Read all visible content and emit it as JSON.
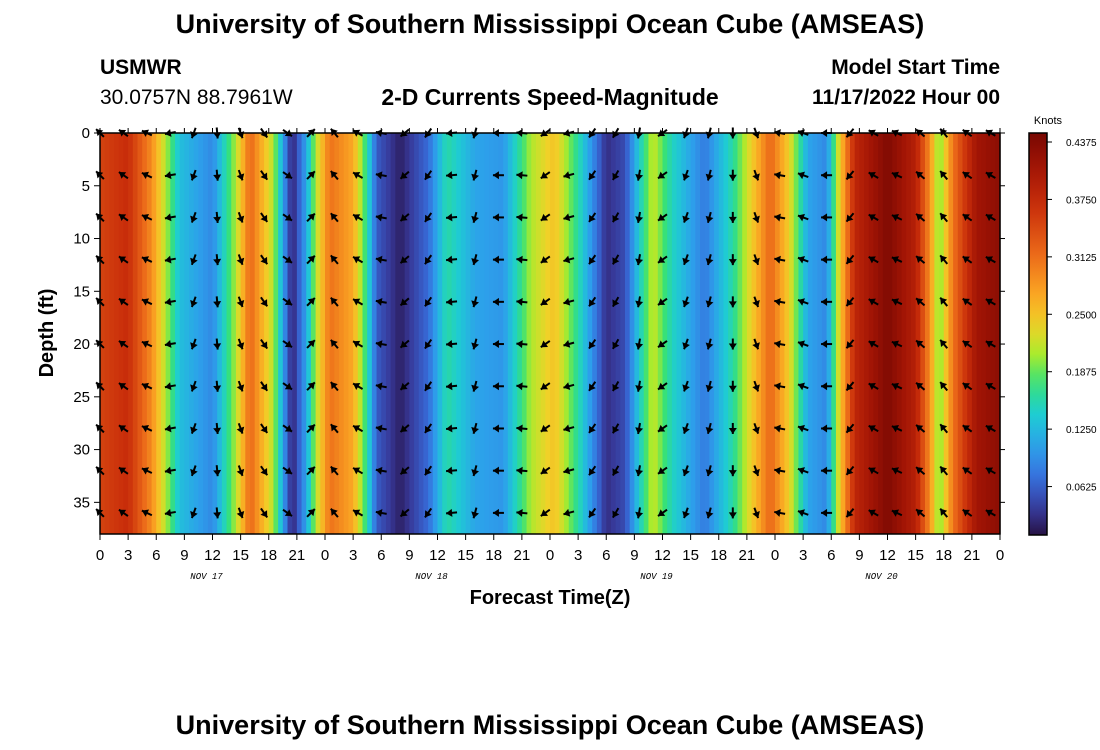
{
  "header": {
    "title": "University of Southern Mississippi Ocean Cube (AMSEAS)",
    "station": "USMWR",
    "coords": "30.0757N  88.7961W",
    "chart_title": "2-D Currents Speed-Magnitude",
    "model_start_label": "Model Start Time",
    "model_start_value": "11/17/2022 Hour 00"
  },
  "footer": {
    "title": "University of Southern Mississippi Ocean Cube (AMSEAS)"
  },
  "colors": {
    "background": "#ffffff",
    "arrow": "#000000"
  },
  "chart_data": {
    "type": "heatmap",
    "title": "2-D Currents Speed-Magnitude",
    "xlabel": "Forecast Time(Z)",
    "ylabel": "Depth (ft)",
    "xlim": [
      0,
      96
    ],
    "ylim": [
      0,
      38
    ],
    "x_tick_labels": [
      "0",
      "3",
      "6",
      "9",
      "12",
      "15",
      "18",
      "21",
      "0",
      "3",
      "6",
      "9",
      "12",
      "15",
      "18",
      "21",
      "0",
      "3",
      "6",
      "9",
      "12",
      "15",
      "18",
      "21",
      "0",
      "3",
      "6",
      "9",
      "12",
      "15",
      "18",
      "21",
      "0"
    ],
    "date_labels": [
      {
        "label": "NOV 17",
        "hour": 12
      },
      {
        "label": "NOV 18",
        "hour": 36
      },
      {
        "label": "NOV 19",
        "hour": 60
      },
      {
        "label": "NOV 20",
        "hour": 84
      }
    ],
    "y_ticks": [
      0,
      5,
      10,
      15,
      20,
      25,
      30,
      35
    ],
    "colorbar": {
      "label": "Knots",
      "range": [
        0,
        0.4375
      ],
      "ticks": [
        "0.4375",
        "0.3750",
        "0.3125",
        "0.2500",
        "0.1875",
        "0.1250",
        "0.0625"
      ],
      "tick_values": [
        0.4375,
        0.375,
        0.3125,
        0.25,
        0.1875,
        0.125,
        0.0625
      ]
    },
    "speed_by_hour": [
      {
        "hour": 0,
        "speed": 0.34
      },
      {
        "hour": 3,
        "speed": 0.36
      },
      {
        "hour": 5.5,
        "speed": 0.28
      },
      {
        "hour": 7,
        "speed": 0.2
      },
      {
        "hour": 8.5,
        "speed": 0.12
      },
      {
        "hour": 12,
        "speed": 0.08
      },
      {
        "hour": 14.5,
        "speed": 0.2
      },
      {
        "hour": 16,
        "speed": 0.31
      },
      {
        "hour": 18.5,
        "speed": 0.2
      },
      {
        "hour": 19.5,
        "speed": 0.1
      },
      {
        "hour": 20.5,
        "speed": 0.01
      },
      {
        "hour": 22,
        "speed": 0.1
      },
      {
        "hour": 23,
        "speed": 0.2
      },
      {
        "hour": 24.5,
        "speed": 0.3
      },
      {
        "hour": 27,
        "speed": 0.26
      },
      {
        "hour": 28.5,
        "speed": 0.15
      },
      {
        "hour": 29.5,
        "speed": 0.05
      },
      {
        "hour": 32,
        "speed": 0.01
      },
      {
        "hour": 35,
        "speed": 0.06
      },
      {
        "hour": 37,
        "speed": 0.15
      },
      {
        "hour": 40,
        "speed": 0.1
      },
      {
        "hour": 43,
        "speed": 0.09
      },
      {
        "hour": 46,
        "speed": 0.2
      },
      {
        "hour": 48.5,
        "speed": 0.24
      },
      {
        "hour": 51,
        "speed": 0.15
      },
      {
        "hour": 54,
        "speed": 0.02
      },
      {
        "hour": 56,
        "speed": 0.04
      },
      {
        "hour": 57.5,
        "speed": 0.13
      },
      {
        "hour": 59,
        "speed": 0.21
      },
      {
        "hour": 61,
        "speed": 0.14
      },
      {
        "hour": 64.5,
        "speed": 0.07
      },
      {
        "hour": 67.5,
        "speed": 0.15
      },
      {
        "hour": 69.5,
        "speed": 0.23
      },
      {
        "hour": 71.5,
        "speed": 0.31
      },
      {
        "hour": 73.5,
        "speed": 0.23
      },
      {
        "hour": 75.5,
        "speed": 0.1
      },
      {
        "hour": 77.5,
        "speed": 0.08
      },
      {
        "hour": 79,
        "speed": 0.24
      },
      {
        "hour": 80.5,
        "speed": 0.37
      },
      {
        "hour": 84,
        "speed": 0.43
      },
      {
        "hour": 87,
        "speed": 0.38
      },
      {
        "hour": 88.5,
        "speed": 0.28
      },
      {
        "hour": 89.5,
        "speed": 0.18
      },
      {
        "hour": 91,
        "speed": 0.3
      },
      {
        "hour": 93.5,
        "speed": 0.4
      },
      {
        "hour": 96,
        "speed": 0.42
      }
    ],
    "arrow_depths": [
      0,
      4,
      8,
      12,
      16,
      20,
      24,
      28,
      32,
      36
    ],
    "arrow_directions_deg": [
      {
        "hour": 0,
        "deg": 315
      },
      {
        "hour": 2.5,
        "deg": 305
      },
      {
        "hour": 5,
        "deg": 295
      },
      {
        "hour": 7.5,
        "deg": 260
      },
      {
        "hour": 10,
        "deg": 200
      },
      {
        "hour": 12.5,
        "deg": 175
      },
      {
        "hour": 15,
        "deg": 160
      },
      {
        "hour": 17.5,
        "deg": 145
      },
      {
        "hour": 20,
        "deg": 125
      },
      {
        "hour": 22.5,
        "deg": 45
      },
      {
        "hour": 25,
        "deg": 320
      },
      {
        "hour": 27.5,
        "deg": 300
      },
      {
        "hour": 30,
        "deg": 280
      },
      {
        "hour": 32.5,
        "deg": 230
      },
      {
        "hour": 35,
        "deg": 215
      },
      {
        "hour": 37.5,
        "deg": 265
      },
      {
        "hour": 40,
        "deg": 195
      },
      {
        "hour": 42.5,
        "deg": 270
      },
      {
        "hour": 45,
        "deg": 275
      },
      {
        "hour": 47.5,
        "deg": 235
      },
      {
        "hour": 50,
        "deg": 255
      },
      {
        "hour": 52.5,
        "deg": 215
      },
      {
        "hour": 55,
        "deg": 210
      },
      {
        "hour": 57.5,
        "deg": 190
      },
      {
        "hour": 60,
        "deg": 235
      },
      {
        "hour": 62.5,
        "deg": 200
      },
      {
        "hour": 65,
        "deg": 195
      },
      {
        "hour": 67.5,
        "deg": 180
      },
      {
        "hour": 70,
        "deg": 160
      },
      {
        "hour": 72.5,
        "deg": 280
      },
      {
        "hour": 75,
        "deg": 290
      },
      {
        "hour": 77.5,
        "deg": 270
      },
      {
        "hour": 80,
        "deg": 220
      },
      {
        "hour": 82.5,
        "deg": 300
      },
      {
        "hour": 85,
        "deg": 295
      },
      {
        "hour": 87.5,
        "deg": 310
      },
      {
        "hour": 90,
        "deg": 320
      },
      {
        "hour": 92.5,
        "deg": 305
      },
      {
        "hour": 95,
        "deg": 300
      }
    ]
  }
}
